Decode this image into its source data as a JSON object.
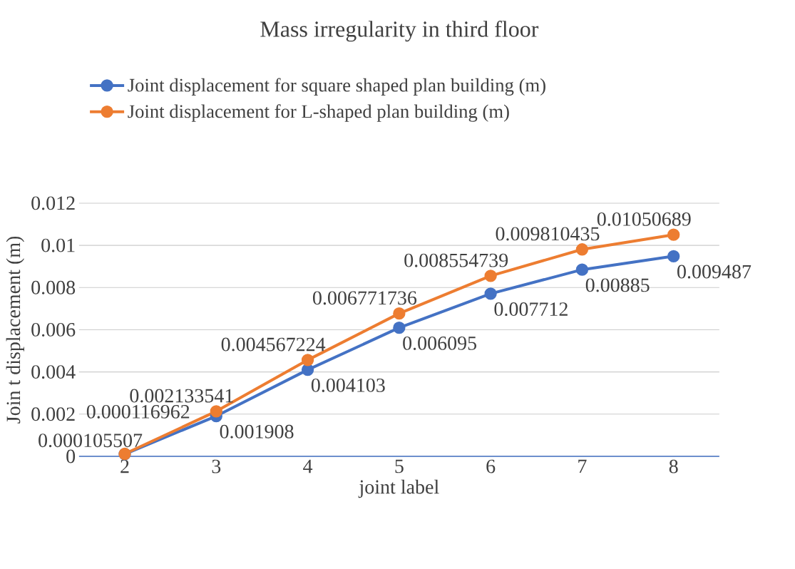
{
  "chart_data": {
    "type": "line",
    "title": "Mass irregularity in third floor",
    "xlabel": "joint label",
    "ylabel": "Join t displacement (m)",
    "categories": [
      "2",
      "3",
      "4",
      "5",
      "6",
      "7",
      "8"
    ],
    "series": [
      {
        "name": "Joint displacement for square shaped plan building (m)",
        "color": "#4472c4",
        "values": [
          0.000105507,
          0.001908,
          0.004103,
          0.006095,
          0.007712,
          0.00885,
          0.009487
        ],
        "value_labels": [
          "0.000105507",
          "0.001908",
          "0.004103",
          "0.006095",
          "0.007712",
          "0.00885",
          "0.009487"
        ]
      },
      {
        "name": "Joint displacement for L-shaped plan building (m)",
        "color": "#ed7d31",
        "values": [
          0.000116962,
          0.002133541,
          0.004567224,
          0.006771736,
          0.008554739,
          0.009810435,
          0.01050689
        ],
        "value_labels": [
          "0.000116962",
          "0.002133541",
          "0.004567224",
          "0.006771736",
          "0.008554739",
          "0.009810435",
          "0.01050689"
        ]
      }
    ],
    "ylim": [
      0,
      0.012
    ],
    "yticks": [
      0,
      0.002,
      0.004,
      0.006,
      0.008,
      0.01,
      0.012
    ],
    "grid": "y",
    "legend": "top",
    "marker": "circle",
    "line_style": "solid"
  }
}
